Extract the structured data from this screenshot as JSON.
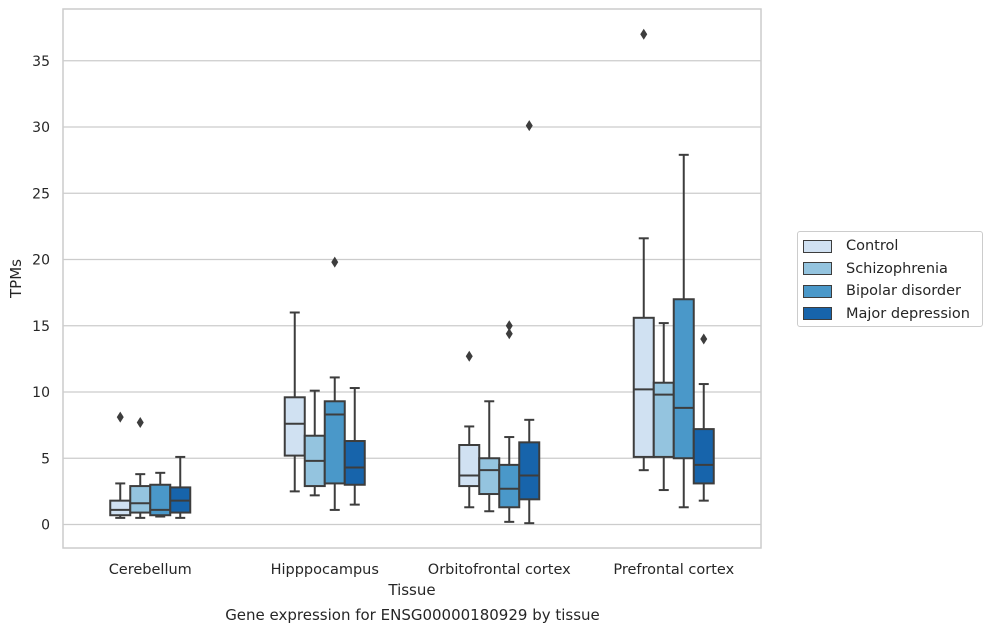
{
  "caption": "Gene expression for ENSG00000180929 by tissue",
  "colors": {
    "series": [
      "#d0e1f2",
      "#94c4df",
      "#4a98c9",
      "#1764ab"
    ],
    "box_edge": "#3d3d3d",
    "grid": "#cccccc",
    "frame": "#cccccc",
    "background": "#ffffff"
  },
  "chart_data": {
    "type": "box",
    "xlabel": "Tissue",
    "ylabel": "TPMs",
    "ylim": [
      -1.8,
      39
    ],
    "yticks": [
      0,
      5,
      10,
      15,
      20,
      25,
      30,
      35
    ],
    "grid": "horizontal",
    "legend_placement": "outside-right",
    "categories": [
      "Cerebellum",
      "Hipppocampus",
      "Orbitofrontal cortex",
      "Prefrontal cortex"
    ],
    "series": [
      {
        "name": "Control",
        "boxes": [
          {
            "whislo": 0.5,
            "q1": 0.7,
            "med": 1.1,
            "q3": 1.8,
            "whishi": 3.1,
            "fliers": [
              8.1
            ]
          },
          {
            "whislo": 2.5,
            "q1": 5.2,
            "med": 7.6,
            "q3": 9.6,
            "whishi": 16.0,
            "fliers": []
          },
          {
            "whislo": 1.3,
            "q1": 2.9,
            "med": 3.7,
            "q3": 6.0,
            "whishi": 7.4,
            "fliers": [
              12.7
            ]
          },
          {
            "whislo": 4.1,
            "q1": 5.1,
            "med": 10.2,
            "q3": 15.6,
            "whishi": 21.6,
            "fliers": [
              37.0
            ]
          }
        ]
      },
      {
        "name": "Schizophrenia",
        "boxes": [
          {
            "whislo": 0.5,
            "q1": 0.9,
            "med": 1.6,
            "q3": 2.9,
            "whishi": 3.8,
            "fliers": [
              7.7
            ]
          },
          {
            "whislo": 2.2,
            "q1": 2.9,
            "med": 4.8,
            "q3": 6.7,
            "whishi": 10.1,
            "fliers": []
          },
          {
            "whislo": 1.0,
            "q1": 2.3,
            "med": 4.1,
            "q3": 5.0,
            "whishi": 9.3,
            "fliers": []
          },
          {
            "whislo": 2.6,
            "q1": 5.1,
            "med": 9.8,
            "q3": 10.7,
            "whishi": 15.2,
            "fliers": []
          }
        ]
      },
      {
        "name": "Bipolar disorder",
        "boxes": [
          {
            "whislo": 0.6,
            "q1": 0.7,
            "med": 1.1,
            "q3": 3.0,
            "whishi": 3.9,
            "fliers": []
          },
          {
            "whislo": 1.1,
            "q1": 3.1,
            "med": 8.3,
            "q3": 9.3,
            "whishi": 11.1,
            "fliers": [
              19.8
            ]
          },
          {
            "whislo": 0.2,
            "q1": 1.3,
            "med": 2.7,
            "q3": 4.5,
            "whishi": 6.6,
            "fliers": [
              14.4,
              15.0
            ]
          },
          {
            "whislo": 1.3,
            "q1": 5.0,
            "med": 8.8,
            "q3": 17.0,
            "whishi": 27.9,
            "fliers": []
          }
        ]
      },
      {
        "name": "Major depression",
        "boxes": [
          {
            "whislo": 0.5,
            "q1": 0.9,
            "med": 1.8,
            "q3": 2.8,
            "whishi": 5.1,
            "fliers": []
          },
          {
            "whislo": 1.5,
            "q1": 3.0,
            "med": 4.3,
            "q3": 6.3,
            "whishi": 10.3,
            "fliers": []
          },
          {
            "whislo": 0.1,
            "q1": 1.9,
            "med": 3.7,
            "q3": 6.2,
            "whishi": 7.9,
            "fliers": [
              30.1
            ]
          },
          {
            "whislo": 1.8,
            "q1": 3.1,
            "med": 4.5,
            "q3": 7.2,
            "whishi": 10.6,
            "fliers": [
              14.0
            ]
          }
        ]
      }
    ]
  }
}
